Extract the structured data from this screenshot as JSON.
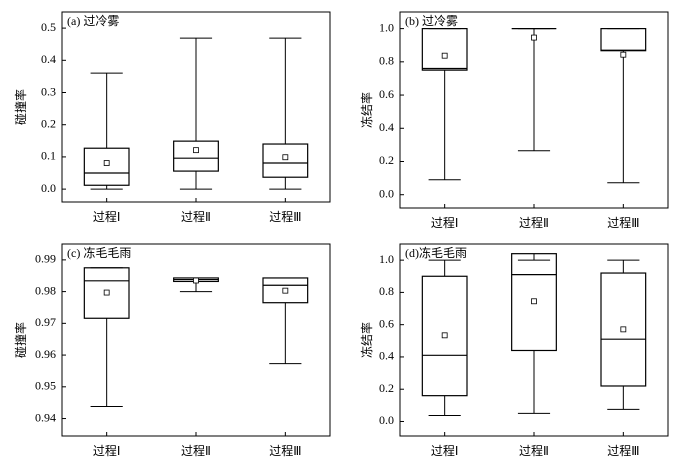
{
  "chart_data": [
    {
      "type": "box",
      "title": "(a) 过冷雾",
      "ylabel": "碰撞率",
      "categories": [
        "过程Ⅰ",
        "过程Ⅱ",
        "过程Ⅲ"
      ],
      "whisker_low": [
        0,
        0,
        0
      ],
      "q1": [
        0.012,
        0.056,
        0.037
      ],
      "median": [
        0.05,
        0.096,
        0.081
      ],
      "q3": [
        0.127,
        0.149,
        0.14
      ],
      "whisker_high": [
        0.36,
        0.469,
        0.469
      ],
      "mean": [
        0.081,
        0.121,
        0.099
      ],
      "ylim": [
        -0.04,
        0.55
      ],
      "yticks": [
        {
          "value": 0,
          "label": "0.0"
        },
        0.1,
        0.2,
        0.3,
        0.4,
        0.5
      ]
    },
    {
      "type": "box",
      "title": "(b) 过冷雾",
      "ylabel": "冻结率",
      "categories": [
        "过程Ⅰ",
        "过程Ⅱ",
        "过程Ⅲ"
      ],
      "whisker_low": [
        0.09,
        0.265,
        0.072
      ],
      "q1": [
        0.75,
        1.0,
        0.867
      ],
      "median": [
        0.76,
        1.0,
        0.87
      ],
      "q3": [
        1.0,
        1.0,
        1.0
      ],
      "whisker_high": [
        1.0,
        1.0,
        1.0
      ],
      "mean": [
        0.837,
        0.946,
        0.843
      ],
      "ylim": [
        -0.08,
        1.1
      ],
      "yticks": [
        {
          "value": 0,
          "label": "0.0"
        },
        0.2,
        0.4,
        0.6,
        0.8,
        {
          "value": 1,
          "label": "1.0"
        }
      ]
    },
    {
      "type": "box",
      "title": "(c) 冻毛毛雨",
      "ylabel": "碰撞率",
      "categories": [
        "过程Ⅰ",
        "过程Ⅱ",
        "过程Ⅲ"
      ],
      "whisker_low": [
        0.9438,
        0.98,
        0.9573
      ],
      "q1": [
        0.9716,
        0.9832,
        0.9765
      ],
      "median": [
        0.9834,
        0.9838,
        0.982
      ],
      "q3": [
        0.9875,
        0.9843,
        0.9843
      ],
      "whisker_high": [
        0.9875,
        0.9843,
        0.9843
      ],
      "mean": [
        0.9797,
        0.9835,
        0.9803
      ],
      "ylim": [
        0.9345,
        0.995
      ],
      "yticks": [
        0.94,
        0.95,
        0.96,
        0.97,
        0.98,
        0.99
      ]
    },
    {
      "type": "box",
      "title": "(d)冻毛毛雨",
      "ylabel": "冻结率",
      "categories": [
        "过程Ⅰ",
        "过程Ⅱ",
        "过程Ⅲ"
      ],
      "whisker_low": [
        0.037,
        0.05,
        0.075
      ],
      "q1": [
        0.16,
        0.44,
        0.22
      ],
      "median": [
        0.41,
        0.91,
        0.51
      ],
      "q3": [
        0.9,
        1.04,
        0.92
      ],
      "whisker_high": [
        1.0,
        1.0,
        1.0
      ],
      "mean": [
        0.534,
        0.745,
        0.571
      ],
      "ylim": [
        -0.09,
        1.1
      ],
      "yticks": [
        {
          "value": 0,
          "label": "0.0"
        },
        0.2,
        0.4,
        0.6,
        0.8,
        {
          "value": 1,
          "label": "1.0"
        }
      ]
    }
  ]
}
